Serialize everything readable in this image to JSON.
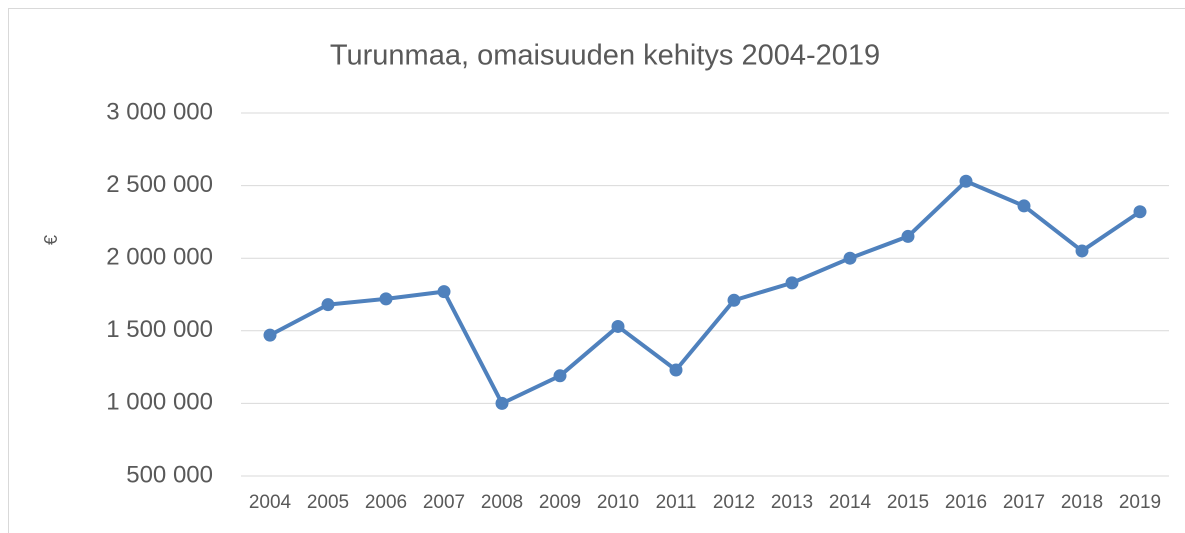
{
  "chart_data": {
    "type": "line",
    "title": "Turunmaa, omaisuuden kehitys 2004-2019",
    "y_label": "€",
    "categories": [
      "2004",
      "2005",
      "2006",
      "2007",
      "2008",
      "2009",
      "2010",
      "2011",
      "2012",
      "2013",
      "2014",
      "2015",
      "2016",
      "2017",
      "2018",
      "2019"
    ],
    "values": [
      1470000,
      1680000,
      1720000,
      1770000,
      1000000,
      1190000,
      1530000,
      1230000,
      1710000,
      1830000,
      2000000,
      2150000,
      2530000,
      2360000,
      2050000,
      2320000
    ],
    "color": "#4f81bd",
    "ylim": [
      500000,
      3000000
    ],
    "yticks": [
      {
        "value": 500000,
        "label": "500 000"
      },
      {
        "value": 1000000,
        "label": "1 000 000"
      },
      {
        "value": 1500000,
        "label": "1 500 000"
      },
      {
        "value": 2000000,
        "label": "2 000 000"
      },
      {
        "value": 2500000,
        "label": "2 500 000"
      },
      {
        "value": 3000000,
        "label": "3 000 000"
      }
    ],
    "grid": true
  }
}
